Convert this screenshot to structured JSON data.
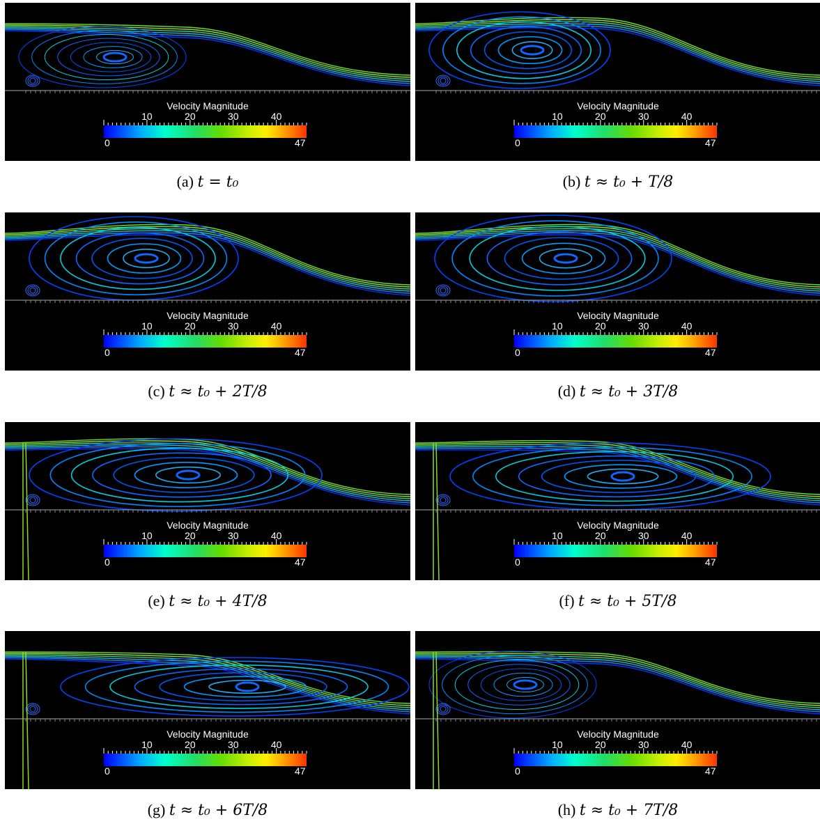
{
  "colorbar": {
    "title": "Velocity Magnitude",
    "ticks": [
      "10",
      "20",
      "30",
      "40"
    ],
    "min_label": "0",
    "max_label": "47",
    "range": [
      0,
      47
    ]
  },
  "panels": [
    {
      "label": "(a)",
      "caption": "t = t₀"
    },
    {
      "label": "(b)",
      "caption": "t ≈ t₀ + T/8"
    },
    {
      "label": "(c)",
      "caption": "t ≈ t₀ + 2T/8"
    },
    {
      "label": "(d)",
      "caption": "t ≈ t₀ + 3T/8"
    },
    {
      "label": "(e)",
      "caption": "t ≈ t₀ + 4T/8"
    },
    {
      "label": "(f)",
      "caption": "t ≈ t₀ + 5T/8"
    },
    {
      "label": "(g)",
      "caption": "t ≈ t₀ + 6T/8"
    },
    {
      "label": "(h)",
      "caption": "t ≈ t₀ + 7T/8"
    }
  ]
}
